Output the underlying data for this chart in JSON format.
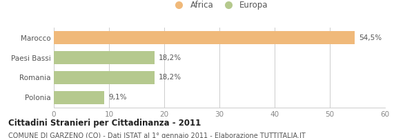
{
  "categories": [
    "Polonia",
    "Romania",
    "Paesi Bassi",
    "Marocco"
  ],
  "values": [
    9.1,
    18.2,
    18.2,
    54.5
  ],
  "labels": [
    "9,1%",
    "18,2%",
    "18,2%",
    "54,5%"
  ],
  "colors": [
    "#b5c98e",
    "#b5c98e",
    "#b5c98e",
    "#f0b97a"
  ],
  "legend": [
    {
      "label": "Africa",
      "color": "#f0b97a"
    },
    {
      "label": "Europa",
      "color": "#b5c98e"
    }
  ],
  "xlim": [
    0,
    60
  ],
  "xticks": [
    0,
    10,
    20,
    30,
    40,
    50,
    60
  ],
  "title": "Cittadini Stranieri per Cittadinanza - 2011",
  "subtitle": "COMUNE DI GARZENO (CO) - Dati ISTAT al 1° gennaio 2011 - Elaborazione TUTTITALIA.IT",
  "background_color": "#ffffff",
  "bar_edge_color": "none",
  "grid_color": "#cccccc",
  "title_fontsize": 8.5,
  "subtitle_fontsize": 7.0,
  "label_fontsize": 7.5,
  "tick_fontsize": 7.5,
  "legend_fontsize": 8.5,
  "ytick_color": "#555555",
  "xtick_color": "#888888",
  "label_color": "#555555"
}
